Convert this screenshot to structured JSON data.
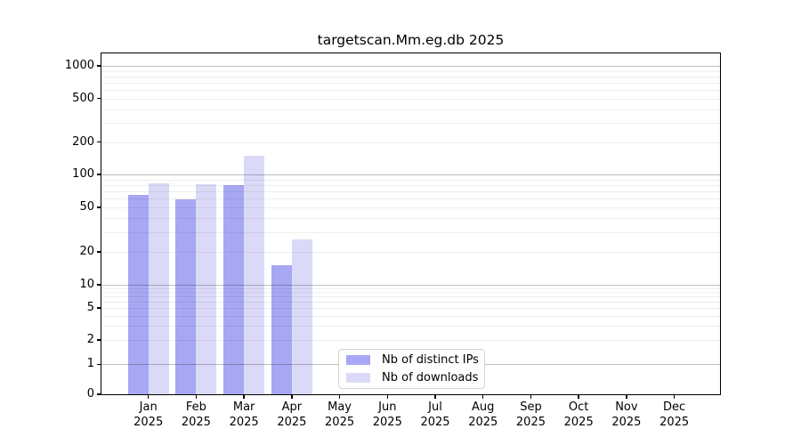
{
  "chart_data": {
    "type": "bar",
    "title": "targetscan.Mm.eg.db 2025",
    "x_year": "2025",
    "categories": [
      "Jan",
      "Feb",
      "Mar",
      "Apr",
      "May",
      "Jun",
      "Jul",
      "Aug",
      "Sep",
      "Oct",
      "Nov",
      "Dec"
    ],
    "series": [
      {
        "name": "Nb of distinct IPs",
        "color": "#a7a7f3",
        "values": [
          65,
          59,
          80,
          15,
          null,
          null,
          null,
          null,
          null,
          null,
          null,
          null
        ]
      },
      {
        "name": "Nb of downloads",
        "color": "#dadaf8",
        "values": [
          83,
          81,
          150,
          26,
          null,
          null,
          null,
          null,
          null,
          null,
          null,
          null
        ]
      }
    ],
    "y_ticks": [
      0,
      1,
      2,
      5,
      10,
      20,
      50,
      100,
      200,
      500,
      1000
    ],
    "y_scale": "symlog",
    "ylim": [
      0,
      1300
    ],
    "xlabel": "",
    "ylabel": "",
    "grid": "horizontal",
    "legend": {
      "position": "bottom-center"
    }
  }
}
